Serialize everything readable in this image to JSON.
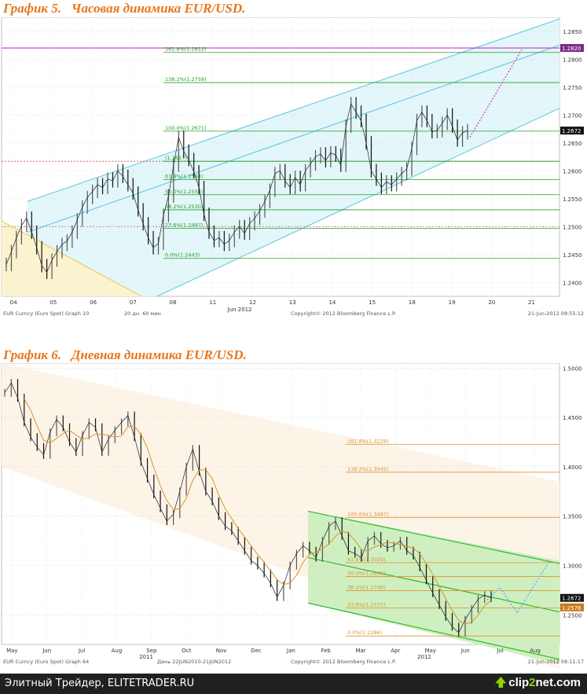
{
  "titles": {
    "chart1": "График 5.   Часовая динамика EUR/USD.",
    "chart2": "График 6.   Дневная динамика EUR/USD."
  },
  "footer": {
    "text": "Элитный Трейдер, ELITETRADER.RU",
    "logo_pre": "clip",
    "logo_num": "2",
    "logo_post": "net.com"
  },
  "colors": {
    "channel": "#59c7e0",
    "fib_line": "#22a022",
    "pink": "#cc33cc",
    "up_bar": "#555555",
    "accent_orange": "#e8761c",
    "green_fill": "#cfefc0",
    "orange_line": "#d9942e"
  },
  "chart_data": [
    {
      "type": "line",
      "title": "График 5.   Часовая динамика EUR/USD.",
      "x_ticks": [
        "04",
        "05",
        "06",
        "07",
        "08",
        "11",
        "12",
        "13",
        "14",
        "15",
        "18",
        "19",
        "20",
        "21"
      ],
      "x_sub_label": "Jun 2012",
      "ylim": [
        1.2375,
        1.2875
      ],
      "y_ticks": [
        "1.2400",
        "1.2450",
        "1.2500",
        "1.2550",
        "1.2600",
        "1.2650",
        "1.2700",
        "1.2750",
        "1.2800",
        "1.2850"
      ],
      "last_price": "1.2672",
      "pink_level": "1.2820",
      "fib_levels": [
        {
          "label": "161.8%(1.2812)",
          "value": 1.2812
        },
        {
          "label": "138.2%(1.2758)",
          "value": 1.2758
        },
        {
          "label": "100.0%(1.2671)",
          "value": 1.2671
        },
        {
          "label": "(1.2617)",
          "value": 1.2617
        },
        {
          "label": "61.8%(1.2584)",
          "value": 1.2584
        },
        {
          "label": "50.0%(1.2557)",
          "value": 1.2557
        },
        {
          "label": "38.2%(1.2530)",
          "value": 1.253
        },
        {
          "label": "23.6%(1.2497)",
          "value": 1.2497
        },
        {
          "label": "0.0%(1.2443)",
          "value": 1.2443
        }
      ],
      "footer_left": "EUR Curncy (Euro Spot) Graph 10",
      "footer_mid": "20 дн. 60 мин",
      "footer_copy": "Copyright© 2012 Bloomberg Finance L.P.",
      "footer_right": "21-Jun-2012 08:55:12",
      "series_close": [
        1.2432,
        1.2455,
        1.248,
        1.2502,
        1.2515,
        1.249,
        1.2462,
        1.243,
        1.2418,
        1.244,
        1.2455,
        1.2468,
        1.2474,
        1.249,
        1.2512,
        1.2535,
        1.2552,
        1.2563,
        1.2575,
        1.257,
        1.2585,
        1.2582,
        1.26,
        1.259,
        1.2575,
        1.256,
        1.253,
        1.2505,
        1.248,
        1.2462,
        1.247,
        1.252,
        1.2555,
        1.261,
        1.266,
        1.2635,
        1.262,
        1.2598,
        1.257,
        1.2522,
        1.249,
        1.2475,
        1.248,
        1.2468,
        1.2475,
        1.249,
        1.25,
        1.2488,
        1.2505,
        1.2515,
        1.2528,
        1.2545,
        1.2565,
        1.2595,
        1.26,
        1.2582,
        1.257,
        1.2588,
        1.2575,
        1.26,
        1.2612,
        1.2625,
        1.263,
        1.2618,
        1.2632,
        1.2628,
        1.261,
        1.268,
        1.272,
        1.2705,
        1.269,
        1.265,
        1.26,
        1.2585,
        1.257,
        1.258,
        1.2575,
        1.2585,
        1.2595,
        1.2603,
        1.264,
        1.269,
        1.2705,
        1.269,
        1.267,
        1.2672,
        1.2685,
        1.27,
        1.268,
        1.2655,
        1.2668,
        1.2672
      ]
    },
    {
      "type": "line",
      "title": "График 6.   Дневная динамика EUR/USD.",
      "x_ticks": [
        "May",
        "Jun",
        "Jul",
        "Aug",
        "Sep",
        "Oct",
        "Nov",
        "Dec",
        "Jan",
        "Feb",
        "Mar",
        "Apr",
        "May",
        "Jun",
        "Jul",
        "Aug"
      ],
      "year_labels": [
        "2011",
        "2012"
      ],
      "ylim": [
        1.22,
        1.505
      ],
      "y_ticks": [
        "1.2500",
        "1.3000",
        "1.3500",
        "1.4000",
        "1.4500",
        "1.5000"
      ],
      "last_price": "1.2672",
      "second_price": "1.2576",
      "fib_levels": [
        {
          "label": "161.8%(1.4228)",
          "value": 1.4228
        },
        {
          "label": "138.2%(1.3945)",
          "value": 1.3945
        },
        {
          "label": "100.0%(1.3487)",
          "value": 1.3487
        },
        {
          "label": "61.8%(1.3029)",
          "value": 1.3029
        },
        {
          "label": "50.0%(1.2888)",
          "value": 1.2888
        },
        {
          "label": "38.2%(1.2746)",
          "value": 1.2746
        },
        {
          "label": "23.6%(1.2571)",
          "value": 1.2571
        },
        {
          "label": "0.0%(1.2286)",
          "value": 1.2286
        }
      ],
      "footer_left": "EUR Curncy (Euro Spot) Graph 64",
      "footer_mid": "День 22JUN2010-21JUN2012",
      "footer_copy": "Copyright© 2012 Bloomberg Finance L.P.",
      "footer_right": "21-Jun-2012 08:11:17",
      "series_close": [
        1.475,
        1.485,
        1.47,
        1.445,
        1.43,
        1.42,
        1.412,
        1.435,
        1.448,
        1.44,
        1.425,
        1.415,
        1.432,
        1.445,
        1.44,
        1.415,
        1.428,
        1.437,
        1.445,
        1.452,
        1.43,
        1.405,
        1.388,
        1.372,
        1.358,
        1.345,
        1.352,
        1.375,
        1.4,
        1.418,
        1.395,
        1.375,
        1.365,
        1.35,
        1.34,
        1.335,
        1.325,
        1.315,
        1.305,
        1.3,
        1.292,
        1.282,
        1.268,
        1.28,
        1.3,
        1.312,
        1.32,
        1.315,
        1.308,
        1.325,
        1.34,
        1.345,
        1.33,
        1.315,
        1.312,
        1.308,
        1.325,
        1.33,
        1.322,
        1.318,
        1.32,
        1.325,
        1.315,
        1.31,
        1.298,
        1.285,
        1.272,
        1.26,
        1.248,
        1.238,
        1.232,
        1.245,
        1.256,
        1.266,
        1.27,
        1.267
      ]
    }
  ]
}
